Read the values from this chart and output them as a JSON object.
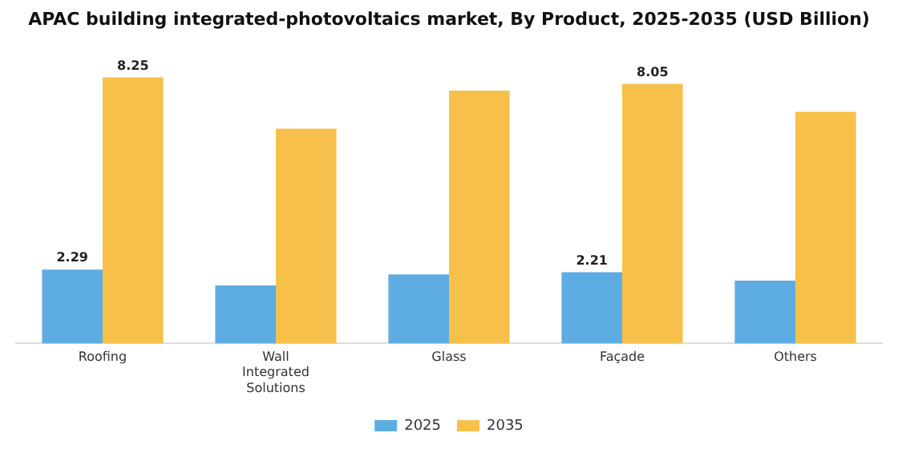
{
  "chart_data": {
    "type": "bar",
    "title": "APAC building integrated-photovoltaics market, By Product, 2025-2035 (USD Billion)",
    "categories": [
      "Roofing",
      "Wall Integrated Solutions",
      "Glass",
      "Façade",
      "Others"
    ],
    "series": [
      {
        "name": "2025",
        "color": "#5dade2",
        "values": [
          2.29,
          1.8,
          2.14,
          2.21,
          1.95
        ],
        "value_labels": [
          "2.29",
          null,
          null,
          "2.21",
          null
        ]
      },
      {
        "name": "2035",
        "color": "#f7c04a",
        "values": [
          8.25,
          6.66,
          7.84,
          8.05,
          7.18
        ],
        "value_labels": [
          "8.25",
          null,
          null,
          "8.05",
          null
        ]
      }
    ],
    "legend": "bottom",
    "grid": false
  }
}
